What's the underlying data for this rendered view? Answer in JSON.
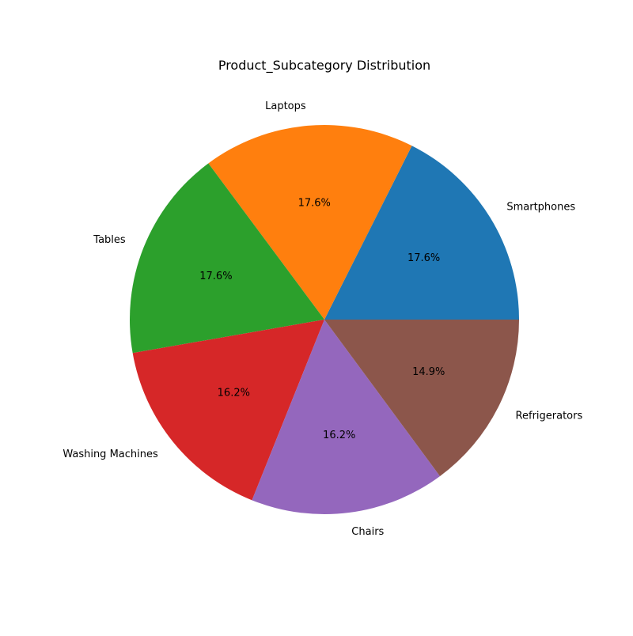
{
  "chart_data": {
    "type": "pie",
    "title": "Product_Subcategory Distribution",
    "start_angle_deg": 0,
    "direction": "counterclockwise",
    "slices": [
      {
        "label": "Smartphones",
        "value": 17.6,
        "pct_label": "17.6%",
        "color": "#1f77b4"
      },
      {
        "label": "Laptops",
        "value": 17.6,
        "pct_label": "17.6%",
        "color": "#ff7f0e"
      },
      {
        "label": "Tables",
        "value": 17.6,
        "pct_label": "17.6%",
        "color": "#2ca02c"
      },
      {
        "label": "Washing Machines",
        "value": 16.2,
        "pct_label": "16.2%",
        "color": "#d62728"
      },
      {
        "label": "Chairs",
        "value": 16.2,
        "pct_label": "16.2%",
        "color": "#9467bd"
      },
      {
        "label": "Refrigerators",
        "value": 14.9,
        "pct_label": "14.9%",
        "color": "#8c564b"
      }
    ]
  }
}
